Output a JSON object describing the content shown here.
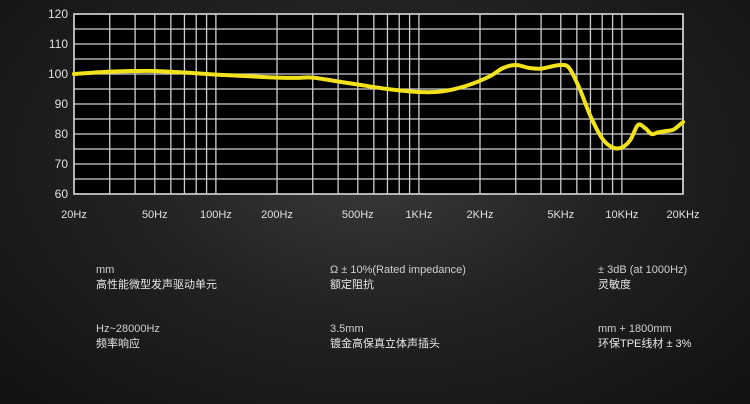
{
  "chart_data": {
    "type": "line",
    "title": "",
    "xlabel": "",
    "ylabel": "",
    "xscale": "log",
    "xlim": [
      20,
      20000
    ],
    "ylim": [
      60,
      120
    ],
    "y_ticks": [
      "60",
      "70",
      "80",
      "90",
      "100",
      "110",
      "120"
    ],
    "x_tick_values": [
      20,
      50,
      100,
      200,
      500,
      1000,
      2000,
      5000,
      10000,
      20000
    ],
    "x_tick_labels": [
      "20Hz",
      "50Hz",
      "100Hz",
      "200Hz",
      "500Hz",
      "1KHz",
      "2KHz",
      "5KHz",
      "10KHz",
      "20KHz"
    ],
    "grid": true,
    "colors": {
      "background": "#000000",
      "grid": "#cfcfcf",
      "curve": "#f2e21a"
    },
    "series": [
      {
        "x": [
          20,
          30,
          40,
          50,
          70,
          100,
          150,
          200,
          250,
          300,
          400,
          500,
          700,
          1000,
          1300,
          1700,
          2200,
          2600,
          3000,
          3500,
          4000,
          4500,
          5000,
          5500,
          6200,
          7000,
          8000,
          9000,
          10000,
          11000,
          12000,
          13000,
          14000,
          15000,
          16500,
          18000,
          20000
        ],
        "y": [
          100,
          100.8,
          101,
          101,
          100.5,
          99.8,
          99.2,
          98.8,
          98.7,
          98.8,
          97.5,
          96.5,
          95,
          94,
          94.2,
          96,
          99,
          102,
          103,
          102,
          101.8,
          102.5,
          103,
          102,
          95,
          86,
          78.5,
          75.5,
          75.5,
          78,
          83,
          82,
          80,
          80.5,
          81,
          81.5,
          84
        ]
      }
    ]
  },
  "specs": {
    "col1": [
      {
        "value": "mm",
        "label": "高性能微型发声驱动单元"
      },
      {
        "value": "Hz~28000Hz",
        "label": "频率响应"
      }
    ],
    "col2": [
      {
        "value": "Ω ± 10%(Rated impedance)",
        "label": "额定阻抗"
      },
      {
        "value": "3.5mm",
        "label": "镀金高保真立体声插头"
      }
    ],
    "col3": [
      {
        "value": "± 3dB (at 1000Hz)",
        "label": "灵敏度"
      },
      {
        "value": "mm + 1800mm",
        "label": "环保TPE线材 ± 3%"
      }
    ]
  }
}
